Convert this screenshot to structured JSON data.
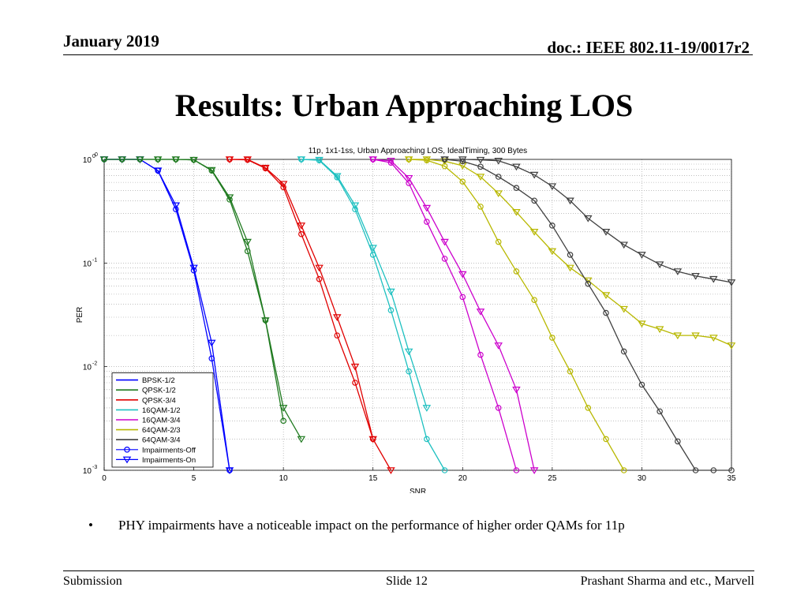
{
  "header": {
    "date": "January 2019",
    "doc": "doc.: IEEE 802.11-19/0017r2"
  },
  "slide": {
    "title": "Results: Urban Approaching LOS"
  },
  "bullets": [
    {
      "marker": "•",
      "text": "PHY impairments have a noticeable impact on the performance of higher order QAMs for 11p"
    }
  ],
  "footer": {
    "left": "Submission",
    "center": "Slide 12",
    "right": "Prashant Sharma and etc., Marvell"
  },
  "chart_data": {
    "type": "line",
    "title": "11p, 1x1-1ss, Urban Approaching LOS, IdealTiming, 300 Bytes",
    "xlabel": "SNR",
    "ylabel": "PER",
    "xlim": [
      0,
      35
    ],
    "ylim": [
      0.001,
      1
    ],
    "yscale": "log",
    "grid": true,
    "legend_placement": "bottom-left",
    "x_ticks": [
      0,
      5,
      10,
      15,
      20,
      25,
      30,
      35
    ],
    "x_tick_labels": [
      "0",
      "5",
      "10",
      "15",
      "20",
      "25",
      "30",
      "35"
    ],
    "y_ticks": [
      1,
      0.1,
      0.01,
      0.001
    ],
    "y_tick_labels": [
      {
        "base": "10",
        "exp": "0"
      },
      {
        "base": "10",
        "exp": "-1"
      },
      {
        "base": "10",
        "exp": "-2"
      },
      {
        "base": "10",
        "exp": "-3"
      }
    ],
    "corner_exponent": "0",
    "legend": {
      "mcs": [
        {
          "name": "BPSK-1/2",
          "color": "#0000ff"
        },
        {
          "name": "QPSK-1/2",
          "color": "#1f7a1f"
        },
        {
          "name": "QPSK-3/4",
          "color": "#e00000"
        },
        {
          "name": "16QAM-1/2",
          "color": "#1ec0c0"
        },
        {
          "name": "16QAM-3/4",
          "color": "#cc00cc"
        },
        {
          "name": "64QAM-2/3",
          "color": "#b8b800"
        },
        {
          "name": "64QAM-3/4",
          "color": "#404040"
        }
      ],
      "markers": [
        {
          "name": "Impairments-Off",
          "marker": "circle",
          "color": "#0000ff"
        },
        {
          "name": "Impairments-On",
          "marker": "triangle-down",
          "color": "#0000ff"
        }
      ]
    },
    "series": [
      {
        "mcs": "BPSK-1/2",
        "impairments": "Off",
        "color": "#0000ff",
        "marker": "circle",
        "x": [
          0,
          1,
          2,
          3,
          4,
          5,
          6,
          7
        ],
        "y": [
          1,
          1,
          1,
          0.78,
          0.33,
          0.085,
          0.012,
          0.001
        ]
      },
      {
        "mcs": "BPSK-1/2",
        "impairments": "On",
        "color": "#0000ff",
        "marker": "triangle-down",
        "x": [
          0,
          1,
          2,
          3,
          4,
          5,
          6,
          7
        ],
        "y": [
          1,
          1,
          1,
          0.78,
          0.36,
          0.09,
          0.017,
          0.001
        ]
      },
      {
        "mcs": "QPSK-1/2",
        "impairments": "Off",
        "color": "#1f7a1f",
        "marker": "circle",
        "x": [
          0,
          1,
          2,
          3,
          4,
          5,
          6,
          7,
          8,
          9,
          10
        ],
        "y": [
          1,
          1,
          1,
          1,
          1,
          0.99,
          0.78,
          0.41,
          0.13,
          0.028,
          0.003
        ]
      },
      {
        "mcs": "QPSK-1/2",
        "impairments": "On",
        "color": "#1f7a1f",
        "marker": "triangle-down",
        "x": [
          0,
          1,
          2,
          3,
          4,
          5,
          6,
          7,
          8,
          9,
          10,
          11
        ],
        "y": [
          1,
          1,
          1,
          1,
          1,
          0.99,
          0.79,
          0.43,
          0.16,
          0.028,
          0.004,
          0.002
        ]
      },
      {
        "mcs": "QPSK-3/4",
        "impairments": "Off",
        "color": "#e00000",
        "marker": "circle",
        "x": [
          7,
          8,
          9,
          10,
          11,
          12,
          13,
          14,
          15
        ],
        "y": [
          1,
          0.99,
          0.82,
          0.54,
          0.19,
          0.07,
          0.02,
          0.007,
          0.002
        ]
      },
      {
        "mcs": "QPSK-3/4",
        "impairments": "On",
        "color": "#e00000",
        "marker": "triangle-down",
        "x": [
          7,
          8,
          9,
          10,
          11,
          12,
          13,
          14,
          15,
          16
        ],
        "y": [
          1,
          1,
          0.83,
          0.58,
          0.23,
          0.09,
          0.03,
          0.01,
          0.002,
          0.001
        ]
      },
      {
        "mcs": "16QAM-1/2",
        "impairments": "Off",
        "color": "#1ec0c0",
        "marker": "circle",
        "x": [
          11,
          12,
          13,
          14,
          15,
          16,
          17,
          18,
          19
        ],
        "y": [
          1,
          0.98,
          0.67,
          0.33,
          0.12,
          0.035,
          0.009,
          0.002,
          0.001
        ]
      },
      {
        "mcs": "16QAM-1/2",
        "impairments": "On",
        "color": "#1ec0c0",
        "marker": "triangle-down",
        "x": [
          11,
          12,
          13,
          14,
          15,
          16,
          17,
          18
        ],
        "y": [
          1,
          0.99,
          0.69,
          0.36,
          0.14,
          0.053,
          0.014,
          0.004
        ]
      },
      {
        "mcs": "16QAM-3/4",
        "impairments": "Off",
        "color": "#cc00cc",
        "marker": "circle",
        "x": [
          15,
          16,
          17,
          18,
          19,
          20,
          21,
          22,
          23
        ],
        "y": [
          1,
          0.93,
          0.59,
          0.25,
          0.11,
          0.047,
          0.013,
          0.004,
          0.001
        ]
      },
      {
        "mcs": "16QAM-3/4",
        "impairments": "On",
        "color": "#cc00cc",
        "marker": "triangle-down",
        "x": [
          15,
          16,
          17,
          18,
          19,
          20,
          21,
          22,
          23,
          24
        ],
        "y": [
          1,
          0.97,
          0.66,
          0.34,
          0.16,
          0.078,
          0.034,
          0.016,
          0.006,
          0.001
        ]
      },
      {
        "mcs": "64QAM-2/3",
        "impairments": "Off",
        "color": "#b8b800",
        "marker": "circle",
        "x": [
          17,
          18,
          19,
          20,
          21,
          22,
          23,
          24,
          25,
          26,
          27,
          28,
          29
        ],
        "y": [
          1,
          0.98,
          0.86,
          0.61,
          0.35,
          0.16,
          0.083,
          0.044,
          0.019,
          0.009,
          0.004,
          0.002,
          0.001
        ]
      },
      {
        "mcs": "64QAM-2/3",
        "impairments": "On",
        "color": "#b8b800",
        "marker": "triangle-down",
        "x": [
          17,
          18,
          19,
          20,
          21,
          22,
          23,
          24,
          25,
          26,
          27,
          28,
          29,
          30,
          31,
          32,
          33,
          34,
          35
        ],
        "y": [
          1,
          1,
          0.96,
          0.87,
          0.68,
          0.47,
          0.31,
          0.2,
          0.13,
          0.09,
          0.068,
          0.049,
          0.036,
          0.026,
          0.023,
          0.02,
          0.02,
          0.019,
          0.016
        ]
      },
      {
        "mcs": "64QAM-3/4",
        "impairments": "Off",
        "color": "#404040",
        "marker": "circle",
        "x": [
          19,
          20,
          21,
          22,
          23,
          24,
          25,
          26,
          27,
          28,
          29,
          30,
          31,
          32,
          33,
          34,
          35
        ],
        "y": [
          1,
          0.96,
          0.85,
          0.68,
          0.53,
          0.4,
          0.23,
          0.12,
          0.063,
          0.033,
          0.014,
          0.0067,
          0.0037,
          0.0019,
          0.001,
          0.001,
          0.001
        ]
      },
      {
        "mcs": "64QAM-3/4",
        "impairments": "On",
        "color": "#404040",
        "marker": "triangle-down",
        "x": [
          19,
          20,
          21,
          22,
          23,
          24,
          25,
          26,
          27,
          28,
          29,
          30,
          31,
          32,
          33,
          34,
          35
        ],
        "y": [
          1,
          1,
          0.99,
          0.97,
          0.85,
          0.71,
          0.55,
          0.4,
          0.27,
          0.2,
          0.15,
          0.12,
          0.097,
          0.083,
          0.075,
          0.07,
          0.065
        ]
      }
    ]
  }
}
